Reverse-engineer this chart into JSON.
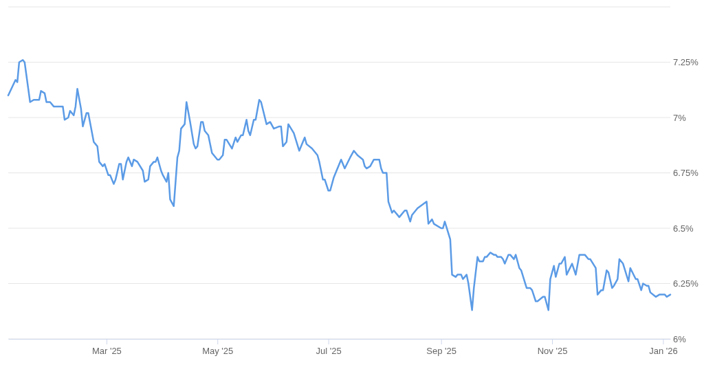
{
  "chart_data": {
    "type": "line",
    "color": "#5b9be6",
    "grid": "y",
    "marker": "none",
    "line_style": "solid",
    "xlim": [
      "2025-01-06",
      "2026-01-05"
    ],
    "xticks": [
      {
        "value": "2025-03-01",
        "label": "Mar '25"
      },
      {
        "value": "2025-05-01",
        "label": "May '25"
      },
      {
        "value": "2025-07-01",
        "label": "Jul '25"
      },
      {
        "value": "2025-09-01",
        "label": "Sep '25"
      },
      {
        "value": "2025-11-01",
        "label": "Nov '25"
      },
      {
        "value": "2026-01-01",
        "label": "Jan '26"
      }
    ],
    "ylim": [
      6,
      7.5
    ],
    "yticks": [
      {
        "value": 6,
        "label": "6%"
      },
      {
        "value": 6.25,
        "label": "6.25%"
      },
      {
        "value": 6.5,
        "label": "6.5%"
      },
      {
        "value": 6.75,
        "label": "6.75%"
      },
      {
        "value": 7,
        "label": "7%"
      },
      {
        "value": 7.25,
        "label": "7.25%"
      },
      {
        "value": 7.5,
        "label": null
      }
    ],
    "x": [
      "2025-01-06",
      "2025-01-10",
      "2025-01-11",
      "2025-01-12",
      "2025-01-14",
      "2025-01-15",
      "2025-01-17",
      "2025-01-18",
      "2025-01-20",
      "2025-01-23",
      "2025-01-24",
      "2025-01-26",
      "2025-01-27",
      "2025-01-29",
      "2025-01-31",
      "2025-02-05",
      "2025-02-06",
      "2025-02-08",
      "2025-02-09",
      "2025-02-11",
      "2025-02-12",
      "2025-02-13",
      "2025-02-15",
      "2025-02-16",
      "2025-02-18",
      "2025-02-19",
      "2025-02-22",
      "2025-02-24",
      "2025-02-25",
      "2025-02-27",
      "2025-02-28",
      "2025-03-02",
      "2025-03-03",
      "2025-03-05",
      "2025-03-06",
      "2025-03-08",
      "2025-03-09",
      "2025-03-10",
      "2025-03-12",
      "2025-03-13",
      "2025-03-15",
      "2025-03-16",
      "2025-03-18",
      "2025-03-21",
      "2025-03-22",
      "2025-03-24",
      "2025-03-25",
      "2025-03-27",
      "2025-03-28",
      "2025-03-29",
      "2025-03-31",
      "2025-04-01",
      "2025-04-03",
      "2025-04-04",
      "2025-04-05",
      "2025-04-07",
      "2025-04-09",
      "2025-04-10",
      "2025-04-11",
      "2025-04-13",
      "2025-04-14",
      "2025-04-16",
      "2025-04-18",
      "2025-04-19",
      "2025-04-20",
      "2025-04-22",
      "2025-04-23",
      "2025-04-24",
      "2025-04-26",
      "2025-04-28",
      "2025-04-30",
      "2025-05-01",
      "2025-05-02",
      "2025-05-04",
      "2025-05-05",
      "2025-05-06",
      "2025-05-09",
      "2025-05-11",
      "2025-05-12",
      "2025-05-14",
      "2025-05-15",
      "2025-05-17",
      "2025-05-18",
      "2025-05-19",
      "2025-05-21",
      "2025-05-22",
      "2025-05-24",
      "2025-05-25",
      "2025-05-28",
      "2025-05-30",
      "2025-06-01",
      "2025-06-04",
      "2025-06-05",
      "2025-06-06",
      "2025-06-08",
      "2025-06-09",
      "2025-06-12",
      "2025-06-15",
      "2025-06-18",
      "2025-06-19",
      "2025-06-22",
      "2025-06-25",
      "2025-06-26",
      "2025-06-28",
      "2025-06-29",
      "2025-07-01",
      "2025-07-02",
      "2025-07-04",
      "2025-07-05",
      "2025-07-08",
      "2025-07-10",
      "2025-07-13",
      "2025-07-15",
      "2025-07-17",
      "2025-07-20",
      "2025-07-21",
      "2025-07-22",
      "2025-07-24",
      "2025-07-26",
      "2025-07-29",
      "2025-07-30",
      "2025-07-31",
      "2025-08-02",
      "2025-08-03",
      "2025-08-05",
      "2025-08-06",
      "2025-08-09",
      "2025-08-12",
      "2025-08-13",
      "2025-08-15",
      "2025-08-16",
      "2025-08-19",
      "2025-08-24",
      "2025-08-25",
      "2025-08-27",
      "2025-08-28",
      "2025-09-01",
      "2025-09-02",
      "2025-09-03",
      "2025-09-06",
      "2025-09-07",
      "2025-09-09",
      "2025-09-10",
      "2025-09-12",
      "2025-09-13",
      "2025-09-15",
      "2025-09-16",
      "2025-09-18",
      "2025-09-19",
      "2025-09-21",
      "2025-09-22",
      "2025-09-24",
      "2025-09-25",
      "2025-09-26",
      "2025-09-28",
      "2025-09-30",
      "2025-10-01",
      "2025-10-02",
      "2025-10-04",
      "2025-10-05",
      "2025-10-06",
      "2025-10-08",
      "2025-10-09",
      "2025-10-11",
      "2025-10-12",
      "2025-10-14",
      "2025-10-15",
      "2025-10-18",
      "2025-10-20",
      "2025-10-21",
      "2025-10-23",
      "2025-10-24",
      "2025-10-27",
      "2025-10-28",
      "2025-10-30",
      "2025-10-31",
      "2025-11-02",
      "2025-11-03",
      "2025-11-05",
      "2025-11-06",
      "2025-11-08",
      "2025-11-09",
      "2025-11-12",
      "2025-11-14",
      "2025-11-16",
      "2025-11-19",
      "2025-11-21",
      "2025-11-22",
      "2025-11-25",
      "2025-11-26",
      "2025-11-28",
      "2025-11-29",
      "2025-12-01",
      "2025-12-02",
      "2025-12-04",
      "2025-12-05",
      "2025-12-07",
      "2025-12-08",
      "2025-12-10",
      "2025-12-13",
      "2025-12-14",
      "2025-12-17",
      "2025-12-18",
      "2025-12-20",
      "2025-12-21",
      "2025-12-23",
      "2025-12-24",
      "2025-12-25",
      "2025-12-28",
      "2025-12-30",
      "2026-01-02",
      "2026-01-03",
      "2026-01-05"
    ],
    "values": [
      7.1,
      7.17,
      7.16,
      7.25,
      7.26,
      7.25,
      7.13,
      7.07,
      7.08,
      7.08,
      7.12,
      7.11,
      7.07,
      7.07,
      7.05,
      7.05,
      6.99,
      7.0,
      7.03,
      7.01,
      7.05,
      7.13,
      7.04,
      6.96,
      7.02,
      7.02,
      6.89,
      6.87,
      6.8,
      6.78,
      6.79,
      6.74,
      6.74,
      6.7,
      6.72,
      6.79,
      6.79,
      6.72,
      6.8,
      6.82,
      6.78,
      6.81,
      6.8,
      6.76,
      6.71,
      6.72,
      6.78,
      6.8,
      6.8,
      6.82,
      6.76,
      6.74,
      6.71,
      6.75,
      6.63,
      6.6,
      6.82,
      6.85,
      6.95,
      6.97,
      7.07,
      6.98,
      6.88,
      6.86,
      6.87,
      6.98,
      6.98,
      6.94,
      6.92,
      6.84,
      6.82,
      6.81,
      6.81,
      6.83,
      6.9,
      6.9,
      6.86,
      6.91,
      6.89,
      6.92,
      6.92,
      6.99,
      6.94,
      6.92,
      6.99,
      6.99,
      7.08,
      7.07,
      6.97,
      6.98,
      6.95,
      6.96,
      6.96,
      6.87,
      6.89,
      6.97,
      6.93,
      6.85,
      6.91,
      6.88,
      6.86,
      6.83,
      6.8,
      6.72,
      6.72,
      6.67,
      6.67,
      6.73,
      6.75,
      6.81,
      6.77,
      6.82,
      6.85,
      6.83,
      6.81,
      6.78,
      6.77,
      6.78,
      6.81,
      6.81,
      6.77,
      6.75,
      6.75,
      6.62,
      6.57,
      6.58,
      6.55,
      6.58,
      6.58,
      6.53,
      6.56,
      6.59,
      6.62,
      6.52,
      6.54,
      6.52,
      6.5,
      6.5,
      6.53,
      6.45,
      6.29,
      6.28,
      6.29,
      6.29,
      6.27,
      6.29,
      6.25,
      6.13,
      6.23,
      6.37,
      6.35,
      6.35,
      6.37,
      6.37,
      6.39,
      6.38,
      6.38,
      6.37,
      6.37,
      6.36,
      6.34,
      6.38,
      6.38,
      6.36,
      6.38,
      6.32,
      6.31,
      6.23,
      6.23,
      6.22,
      6.17,
      6.17,
      6.19,
      6.19,
      6.13,
      6.27,
      6.33,
      6.28,
      6.34,
      6.34,
      6.37,
      6.29,
      6.34,
      6.29,
      6.38,
      6.38,
      6.36,
      6.36,
      6.32,
      6.2,
      6.22,
      6.22,
      6.31,
      6.3,
      6.23,
      6.24,
      6.27,
      6.36,
      6.34,
      6.26,
      6.32,
      6.27,
      6.27,
      6.22,
      6.25,
      6.24,
      6.24,
      6.21,
      6.19,
      6.2,
      6.2,
      6.19,
      6.2
    ]
  }
}
